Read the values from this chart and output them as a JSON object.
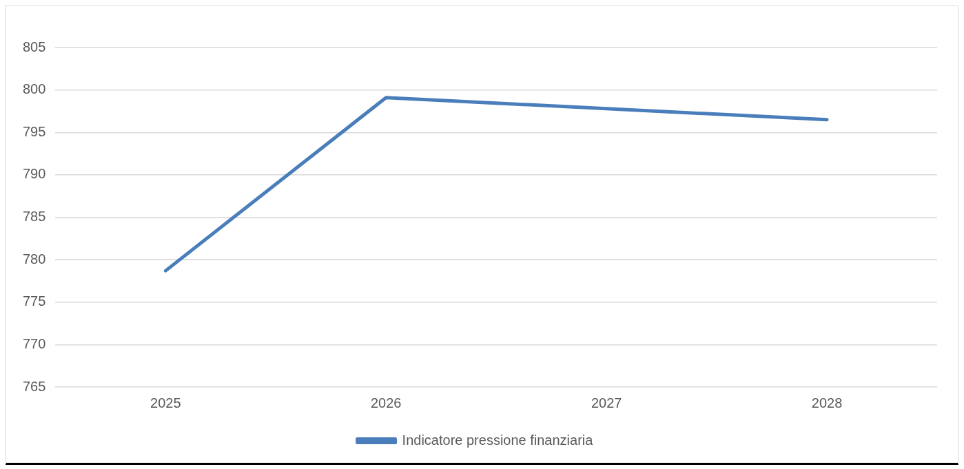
{
  "chart_data": {
    "type": "line",
    "categories": [
      "2025",
      "2026",
      "2027",
      "2028"
    ],
    "series": [
      {
        "name": "Indicatore pressione finanziaria",
        "color": "#4a7ebb",
        "values": [
          778.7,
          799.1,
          797.8,
          796.5
        ]
      }
    ],
    "ylim": [
      765,
      805
    ],
    "yticks": [
      765,
      770,
      775,
      780,
      785,
      790,
      795,
      800,
      805
    ],
    "grid": "y",
    "legend": "bottom",
    "marker": "none",
    "line_style": "solid"
  }
}
